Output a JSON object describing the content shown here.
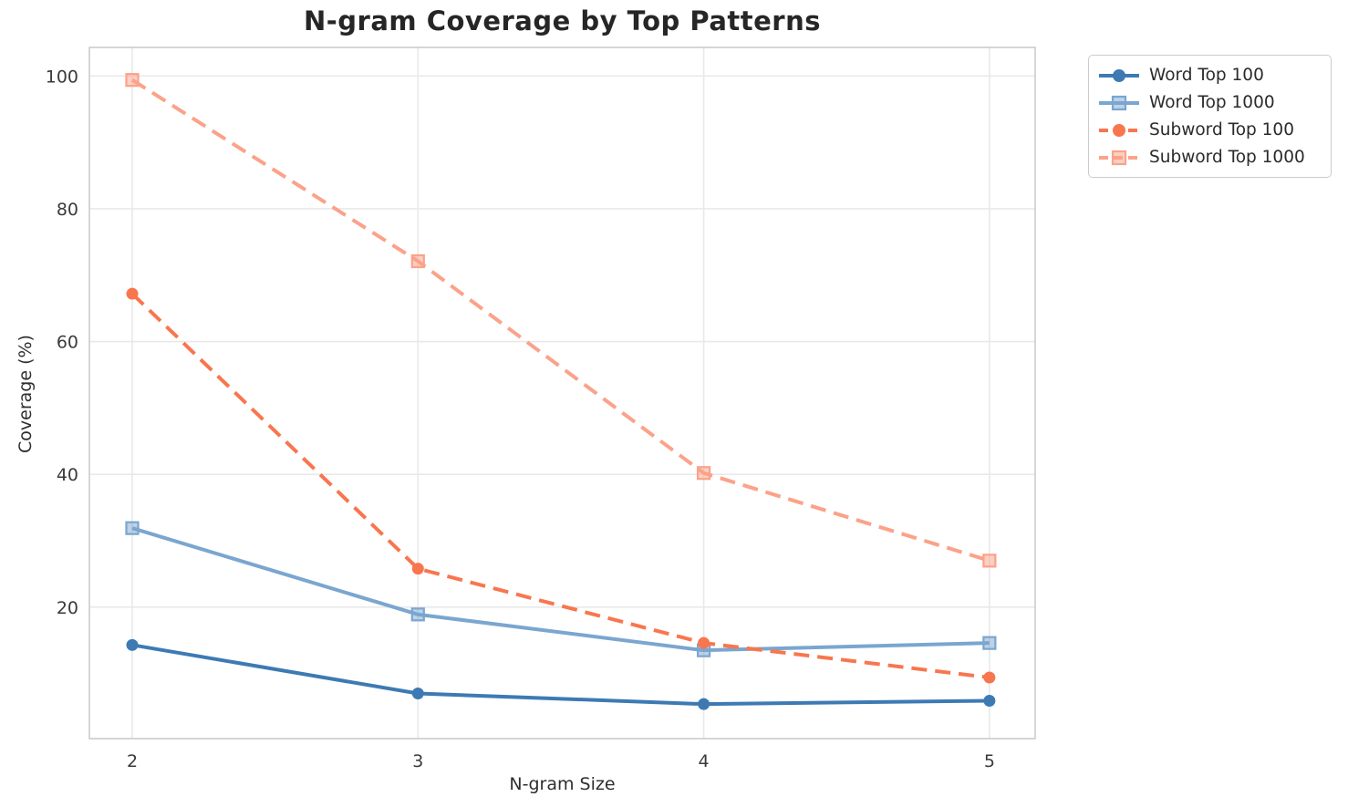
{
  "chart_data": {
    "type": "line",
    "title": "N-gram Coverage by Top Patterns",
    "xlabel": "N-gram Size",
    "ylabel": "Coverage (%)",
    "x": [
      2,
      3,
      4,
      5
    ],
    "xticks": [
      "2",
      "3",
      "4",
      "5"
    ],
    "yticks": [
      20,
      40,
      60,
      80,
      100
    ],
    "xlim": [
      1.85,
      5.16
    ],
    "ylim": [
      0.2,
      104.3
    ],
    "grid": true,
    "legend_position": "outside-top-right",
    "series": [
      {
        "name": "Word Top 100",
        "values": [
          14.3,
          7.0,
          5.4,
          5.9
        ],
        "color": "#3d7ab4",
        "line_style": "solid",
        "marker": "circle"
      },
      {
        "name": "Word Top 1000",
        "values": [
          31.9,
          18.9,
          13.5,
          14.6
        ],
        "color": "#7aa6cf",
        "line_style": "solid",
        "marker": "square"
      },
      {
        "name": "Subword Top 100",
        "values": [
          67.2,
          25.8,
          14.6,
          9.4
        ],
        "color": "#f8764e",
        "line_style": "dashed",
        "marker": "circle"
      },
      {
        "name": "Subword Top 1000",
        "values": [
          99.4,
          72.1,
          40.2,
          27.0
        ],
        "color": "#fba289",
        "line_style": "dashed",
        "marker": "square"
      }
    ],
    "colors": {
      "grid": "#e9e9e9",
      "spine": "#cccccc",
      "title_text": "#262626",
      "tick_text": "#3a3a3a"
    }
  }
}
